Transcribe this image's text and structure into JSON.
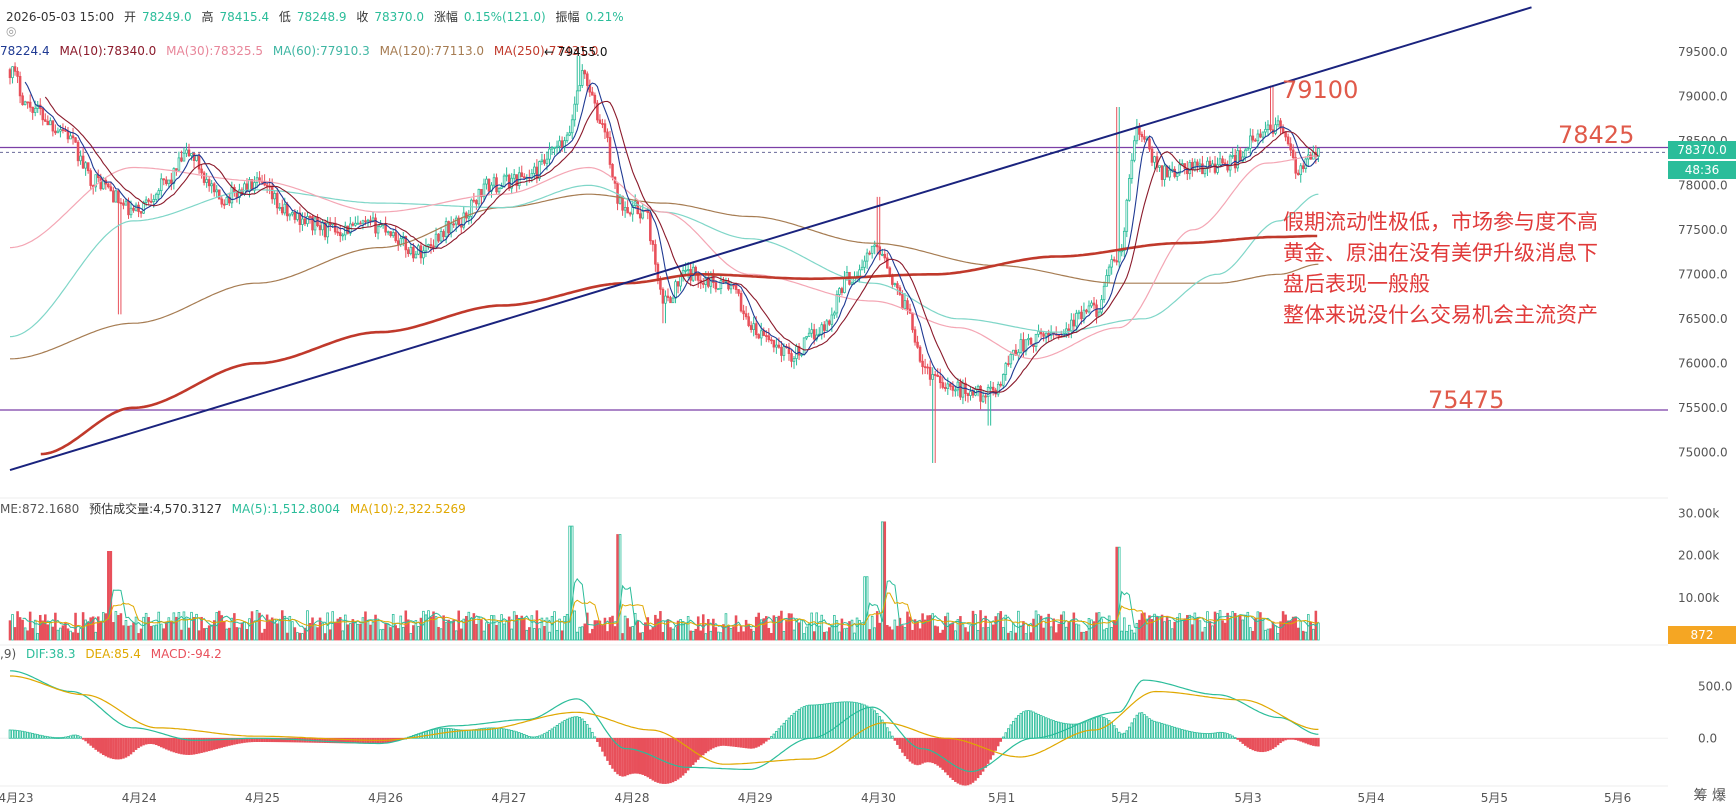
{
  "header": {
    "datetime": "2026-05-03 15:00",
    "open_label": "开",
    "open": "78249.0",
    "high_label": "高",
    "high": "78415.4",
    "low_label": "低",
    "low": "78248.9",
    "close_label": "收",
    "close": "78370.0",
    "change_label": "涨幅",
    "change": "0.15%(121.0)",
    "amp_label": "振幅",
    "amp": "0.21%"
  },
  "ma_legend": {
    "ma5": "78224.4",
    "ma10": "MA(10):78340.0",
    "ma30": "MA(30):78325.5",
    "ma60": "MA(60):77910.3",
    "ma120": "MA(120):77113.0",
    "ma250": "MA(250):77431.0"
  },
  "peak_label": "← 79455.0",
  "annotation_lines": [
    "假期流动性极低，市场参与度不高",
    "黄金、原油在没有美伊升级消息下",
    "盘后表现一般般",
    "整体来说没什么交易机会主流资产"
  ],
  "levels": {
    "l79100": "79100",
    "l78425": "78425",
    "l75475": "75475"
  },
  "price_tag": "78370.0",
  "countdown_tag": "48:36",
  "volume_legend": {
    "vol": "ME:872.1680",
    "estimate": "预估成交量:4,570.3127",
    "ma5": "MA(5):1,512.8004",
    "ma10": "MA(10):2,322.5269"
  },
  "volume_tag": "872",
  "macd_legend": {
    "params": ",9)",
    "dif": "DIF:38.3",
    "dea": "DEA:85.4",
    "macd": "MACD:-94.2"
  },
  "bottom_icons": "筹 爆",
  "colors": {
    "up": "#2bbd9a",
    "down": "#e8505b",
    "trend": "#1a237e",
    "ma5": "#1f3a93",
    "ma10": "#8b1a2b",
    "ma30": "#f4a6b4",
    "ma60": "#7fd6c8",
    "ma120": "#a67c52",
    "ma250": "#c0392b",
    "hline": "#7b3fa6"
  },
  "chart_data": {
    "type": "candlestick",
    "x_ticks": [
      "4月23",
      "4月24",
      "4月25",
      "4月26",
      "4月27",
      "4月28",
      "4月29",
      "4月30",
      "5月1",
      "5月2",
      "5月3",
      "5月4",
      "5月5",
      "5月6"
    ],
    "price_axis": {
      "ticks": [
        "79500.0",
        "79000.0",
        "78500.0",
        "78000.0",
        "77500.0",
        "77000.0",
        "76500.0",
        "76000.0",
        "75500.0",
        "75000.0"
      ],
      "range": [
        74520,
        79970
      ]
    },
    "volume_axis": {
      "ticks": [
        "30.00k",
        "20.00k",
        "10.00k"
      ],
      "range": [
        0,
        32000
      ]
    },
    "macd_axis": {
      "ticks": [
        "500.0",
        "0.0"
      ],
      "range": [
        -450,
        850
      ]
    },
    "horizontal_levels": [
      78425,
      75475
    ],
    "dotted_level": 78370,
    "trendline": {
      "from": {
        "x_day": 0.0,
        "price": 74800
      },
      "to": {
        "x_day": 12.35,
        "price": 80000
      }
    },
    "close_path": [
      {
        "d": 0.0,
        "p": 79300
      },
      {
        "d": 0.15,
        "p": 78900
      },
      {
        "d": 0.4,
        "p": 78650
      },
      {
        "d": 0.7,
        "p": 78050
      },
      {
        "d": 1.0,
        "p": 77700
      },
      {
        "d": 1.25,
        "p": 78000
      },
      {
        "d": 1.45,
        "p": 78350
      },
      {
        "d": 1.7,
        "p": 77850
      },
      {
        "d": 2.0,
        "p": 78000
      },
      {
        "d": 2.3,
        "p": 77650
      },
      {
        "d": 2.6,
        "p": 77500
      },
      {
        "d": 3.0,
        "p": 77550
      },
      {
        "d": 3.3,
        "p": 77250
      },
      {
        "d": 3.6,
        "p": 77550
      },
      {
        "d": 3.9,
        "p": 78000
      },
      {
        "d": 4.2,
        "p": 78100
      },
      {
        "d": 4.5,
        "p": 78450
      },
      {
        "d": 4.65,
        "p": 79250
      },
      {
        "d": 4.8,
        "p": 78700
      },
      {
        "d": 4.95,
        "p": 77800
      },
      {
        "d": 5.15,
        "p": 77700
      },
      {
        "d": 5.3,
        "p": 76700
      },
      {
        "d": 5.5,
        "p": 77000
      },
      {
        "d": 5.8,
        "p": 76900
      },
      {
        "d": 6.1,
        "p": 76300
      },
      {
        "d": 6.35,
        "p": 76100
      },
      {
        "d": 6.6,
        "p": 76400
      },
      {
        "d": 6.8,
        "p": 76950
      },
      {
        "d": 7.05,
        "p": 77300
      },
      {
        "d": 7.25,
        "p": 76700
      },
      {
        "d": 7.45,
        "p": 75900
      },
      {
        "d": 7.7,
        "p": 75700
      },
      {
        "d": 7.95,
        "p": 75650
      },
      {
        "d": 8.2,
        "p": 76200
      },
      {
        "d": 8.5,
        "p": 76350
      },
      {
        "d": 8.8,
        "p": 76600
      },
      {
        "d": 9.0,
        "p": 77200
      },
      {
        "d": 9.15,
        "p": 78600
      },
      {
        "d": 9.35,
        "p": 78150
      },
      {
        "d": 9.6,
        "p": 78200
      },
      {
        "d": 9.9,
        "p": 78250
      },
      {
        "d": 10.1,
        "p": 78500
      },
      {
        "d": 10.3,
        "p": 78700
      },
      {
        "d": 10.45,
        "p": 78150
      },
      {
        "d": 10.62,
        "p": 78370
      }
    ],
    "peaks": [
      {
        "d": 4.62,
        "p": 79455
      },
      {
        "d": 7.05,
        "p": 77870
      },
      {
        "d": 9.0,
        "p": 78880
      },
      {
        "d": 10.25,
        "p": 79120
      }
    ],
    "troughs": [
      {
        "d": 0.9,
        "p": 76550
      },
      {
        "d": 7.5,
        "p": 74880
      },
      {
        "d": 7.95,
        "p": 75300
      },
      {
        "d": 5.3,
        "p": 76450
      }
    ],
    "ma_paths": {
      "ma30": [
        {
          "d": 0,
          "p": 77300
        },
        {
          "d": 1,
          "p": 78200
        },
        {
          "d": 2,
          "p": 78050
        },
        {
          "d": 3,
          "p": 77700
        },
        {
          "d": 4,
          "p": 77900
        },
        {
          "d": 4.7,
          "p": 78200
        },
        {
          "d": 5.3,
          "p": 77700
        },
        {
          "d": 6,
          "p": 77000
        },
        {
          "d": 7,
          "p": 76700
        },
        {
          "d": 7.7,
          "p": 76400
        },
        {
          "d": 8.3,
          "p": 76050
        },
        {
          "d": 9,
          "p": 76400
        },
        {
          "d": 9.6,
          "p": 77500
        },
        {
          "d": 10.2,
          "p": 78250
        },
        {
          "d": 10.62,
          "p": 78330
        }
      ],
      "ma60": [
        {
          "d": 0,
          "p": 76300
        },
        {
          "d": 1,
          "p": 77600
        },
        {
          "d": 2,
          "p": 77950
        },
        {
          "d": 3,
          "p": 77800
        },
        {
          "d": 4,
          "p": 77750
        },
        {
          "d": 4.7,
          "p": 78000
        },
        {
          "d": 5.3,
          "p": 77700
        },
        {
          "d": 6,
          "p": 77400
        },
        {
          "d": 7,
          "p": 76900
        },
        {
          "d": 7.7,
          "p": 76500
        },
        {
          "d": 8.5,
          "p": 76350
        },
        {
          "d": 9.2,
          "p": 76500
        },
        {
          "d": 9.8,
          "p": 77000
        },
        {
          "d": 10.3,
          "p": 77600
        },
        {
          "d": 10.62,
          "p": 77900
        }
      ],
      "ma120": [
        {
          "d": 0,
          "p": 76050
        },
        {
          "d": 1,
          "p": 76450
        },
        {
          "d": 2,
          "p": 76900
        },
        {
          "d": 3,
          "p": 77300
        },
        {
          "d": 4,
          "p": 77750
        },
        {
          "d": 4.7,
          "p": 77900
        },
        {
          "d": 5.3,
          "p": 77800
        },
        {
          "d": 6,
          "p": 77650
        },
        {
          "d": 7,
          "p": 77350
        },
        {
          "d": 8,
          "p": 77100
        },
        {
          "d": 9,
          "p": 76900
        },
        {
          "d": 9.8,
          "p": 76900
        },
        {
          "d": 10.3,
          "p": 77000
        },
        {
          "d": 10.62,
          "p": 77113
        }
      ],
      "ma250": [
        {
          "d": 0.25,
          "p": 74980
        },
        {
          "d": 1,
          "p": 75500
        },
        {
          "d": 2,
          "p": 76000
        },
        {
          "d": 3,
          "p": 76350
        },
        {
          "d": 4,
          "p": 76650
        },
        {
          "d": 5,
          "p": 76900
        },
        {
          "d": 5.6,
          "p": 77000
        },
        {
          "d": 6.5,
          "p": 76950
        },
        {
          "d": 7.5,
          "p": 77000
        },
        {
          "d": 8.5,
          "p": 77200
        },
        {
          "d": 9.5,
          "p": 77350
        },
        {
          "d": 10.3,
          "p": 77420
        },
        {
          "d": 10.62,
          "p": 77431
        }
      ]
    },
    "volume_spikes": [
      {
        "d": 4.55,
        "v": 27000
      },
      {
        "d": 4.95,
        "v": 25000
      },
      {
        "d": 7.1,
        "v": 28000
      },
      {
        "d": 0.8,
        "v": 21000
      },
      {
        "d": 9.0,
        "v": 22000
      },
      {
        "d": 6.95,
        "v": 15000
      }
    ],
    "macd_dif_path": [
      {
        "d": 0,
        "p": 650
      },
      {
        "d": 0.5,
        "p": 450
      },
      {
        "d": 1,
        "p": 100
      },
      {
        "d": 1.5,
        "p": -20
      },
      {
        "d": 2,
        "p": 0
      },
      {
        "d": 3,
        "p": -50
      },
      {
        "d": 3.6,
        "p": 120
      },
      {
        "d": 4.2,
        "p": 180
      },
      {
        "d": 4.6,
        "p": 380
      },
      {
        "d": 5.0,
        "p": -100
      },
      {
        "d": 5.5,
        "p": -280
      },
      {
        "d": 6,
        "p": -300
      },
      {
        "d": 6.5,
        "p": 0
      },
      {
        "d": 7,
        "p": 300
      },
      {
        "d": 7.4,
        "p": -100
      },
      {
        "d": 7.8,
        "p": -320
      },
      {
        "d": 8.3,
        "p": 0
      },
      {
        "d": 9.0,
        "p": 250
      },
      {
        "d": 9.2,
        "p": 560
      },
      {
        "d": 9.8,
        "p": 420
      },
      {
        "d": 10.3,
        "p": 200
      },
      {
        "d": 10.62,
        "p": 38
      }
    ],
    "macd_dea_path": [
      {
        "d": 0,
        "p": 600
      },
      {
        "d": 0.6,
        "p": 420
      },
      {
        "d": 1.2,
        "p": 100
      },
      {
        "d": 2,
        "p": 20
      },
      {
        "d": 3,
        "p": -20
      },
      {
        "d": 3.8,
        "p": 80
      },
      {
        "d": 4.6,
        "p": 250
      },
      {
        "d": 5.2,
        "p": 80
      },
      {
        "d": 5.8,
        "p": -250
      },
      {
        "d": 6.5,
        "p": -200
      },
      {
        "d": 7.1,
        "p": 150
      },
      {
        "d": 7.6,
        "p": 0
      },
      {
        "d": 8.2,
        "p": -180
      },
      {
        "d": 8.8,
        "p": 80
      },
      {
        "d": 9.3,
        "p": 450
      },
      {
        "d": 10.0,
        "p": 370
      },
      {
        "d": 10.62,
        "p": 85
      }
    ]
  }
}
